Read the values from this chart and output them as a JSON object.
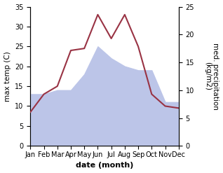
{
  "months": [
    "Jan",
    "Feb",
    "Mar",
    "Apr",
    "May",
    "Jun",
    "Jul",
    "Aug",
    "Sep",
    "Oct",
    "Nov",
    "Dec"
  ],
  "temperature": [
    8.5,
    13.0,
    15.0,
    24.0,
    24.5,
    33.0,
    27.0,
    33.0,
    25.0,
    13.0,
    10.0,
    9.5
  ],
  "precipitation_left_scale": [
    13,
    13,
    14,
    14,
    18,
    25,
    22,
    20,
    19,
    19,
    11,
    11
  ],
  "temp_color": "#993344",
  "precip_fill_color": "#bcc5e8",
  "temp_ylim": [
    0,
    35
  ],
  "precip_ylim": [
    0,
    25
  ],
  "temp_yticks": [
    0,
    5,
    10,
    15,
    20,
    25,
    30,
    35
  ],
  "precip_yticks": [
    0,
    5,
    10,
    15,
    20,
    25
  ],
  "xlabel": "date (month)",
  "ylabel_left": "max temp (C)",
  "ylabel_right": "med. precipitation\n(kg/m2)",
  "label_fontsize": 7.5,
  "tick_fontsize": 7,
  "xlabel_fontsize": 8
}
